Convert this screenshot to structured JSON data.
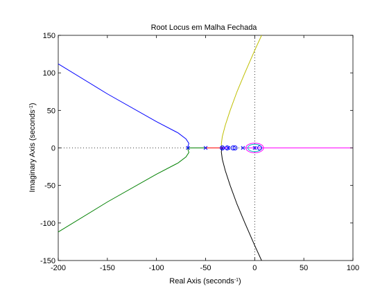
{
  "chart_data": {
    "type": "line",
    "title": "Root Locus em Malha Fechada",
    "xlabel": {
      "base": "Real Axis (seconds",
      "sup": "-1",
      "close": ")"
    },
    "ylabel": {
      "base": "Imaginary Axis (seconds",
      "sup": "-1",
      "close": ")"
    },
    "xlim": [
      -200,
      100
    ],
    "ylim": [
      -150,
      150
    ],
    "xticks": [
      -200,
      -150,
      -100,
      -50,
      0,
      50,
      100
    ],
    "yticks": [
      -150,
      -100,
      -50,
      0,
      50,
      100,
      150
    ],
    "grid": false,
    "series": [
      {
        "color": "#0000ff",
        "points": [
          [
            -68,
            0
          ],
          [
            -68,
            2
          ],
          [
            -67,
            6
          ],
          [
            -70,
            12
          ],
          [
            -78,
            20
          ],
          [
            -100,
            35
          ],
          [
            -150,
            72
          ],
          [
            -200,
            112
          ]
        ]
      },
      {
        "color": "#008000",
        "points": [
          [
            -68,
            0
          ],
          [
            -68,
            -2
          ],
          [
            -67,
            -6
          ],
          [
            -70,
            -12
          ],
          [
            -78,
            -20
          ],
          [
            -100,
            -35
          ],
          [
            -150,
            -72
          ],
          [
            -200,
            -112
          ]
        ]
      },
      {
        "color": "#008000",
        "points": [
          [
            -68,
            0
          ],
          [
            -50,
            0
          ]
        ]
      },
      {
        "color": "#ff0000",
        "points": [
          [
            -50,
            0
          ],
          [
            -33,
            0
          ]
        ]
      },
      {
        "color": "#bfbf00",
        "points": [
          [
            -33,
            0
          ],
          [
            -34,
            5
          ],
          [
            -33,
            15
          ],
          [
            -30,
            30
          ],
          [
            -25,
            50
          ],
          [
            -18,
            75
          ],
          [
            -10,
            100
          ],
          [
            0,
            130
          ],
          [
            7,
            150
          ]
        ]
      },
      {
        "color": "#000000",
        "points": [
          [
            -33,
            0
          ],
          [
            -34,
            -5
          ],
          [
            -33,
            -15
          ],
          [
            -30,
            -30
          ],
          [
            -25,
            -50
          ],
          [
            -18,
            -75
          ],
          [
            -10,
            -100
          ],
          [
            0,
            -130
          ],
          [
            7,
            -150
          ]
        ]
      },
      {
        "color": "#ff00ff",
        "points": [
          [
            -33,
            0
          ],
          [
            -28,
            0
          ]
        ]
      },
      {
        "color": "#ff00ff",
        "points": [
          [
            -10,
            0
          ],
          [
            100,
            0
          ]
        ]
      }
    ],
    "loops": [
      {
        "color": "#ff00ff",
        "cx": 0,
        "rx": 9,
        "ry": 4
      },
      {
        "color": "#00bfbf",
        "cx": 0,
        "rx": 7,
        "ry": 3
      }
    ],
    "poles": [
      -68,
      -50,
      -33,
      -27,
      -12,
      0
    ],
    "zeros": [
      -33,
      -28,
      -22,
      -20,
      5
    ],
    "reference_lines": [
      {
        "orientation": "horizontal",
        "value": 0,
        "from": -200,
        "to": 100
      },
      {
        "orientation": "vertical",
        "value": 0,
        "from": -150,
        "to": 150
      }
    ]
  }
}
